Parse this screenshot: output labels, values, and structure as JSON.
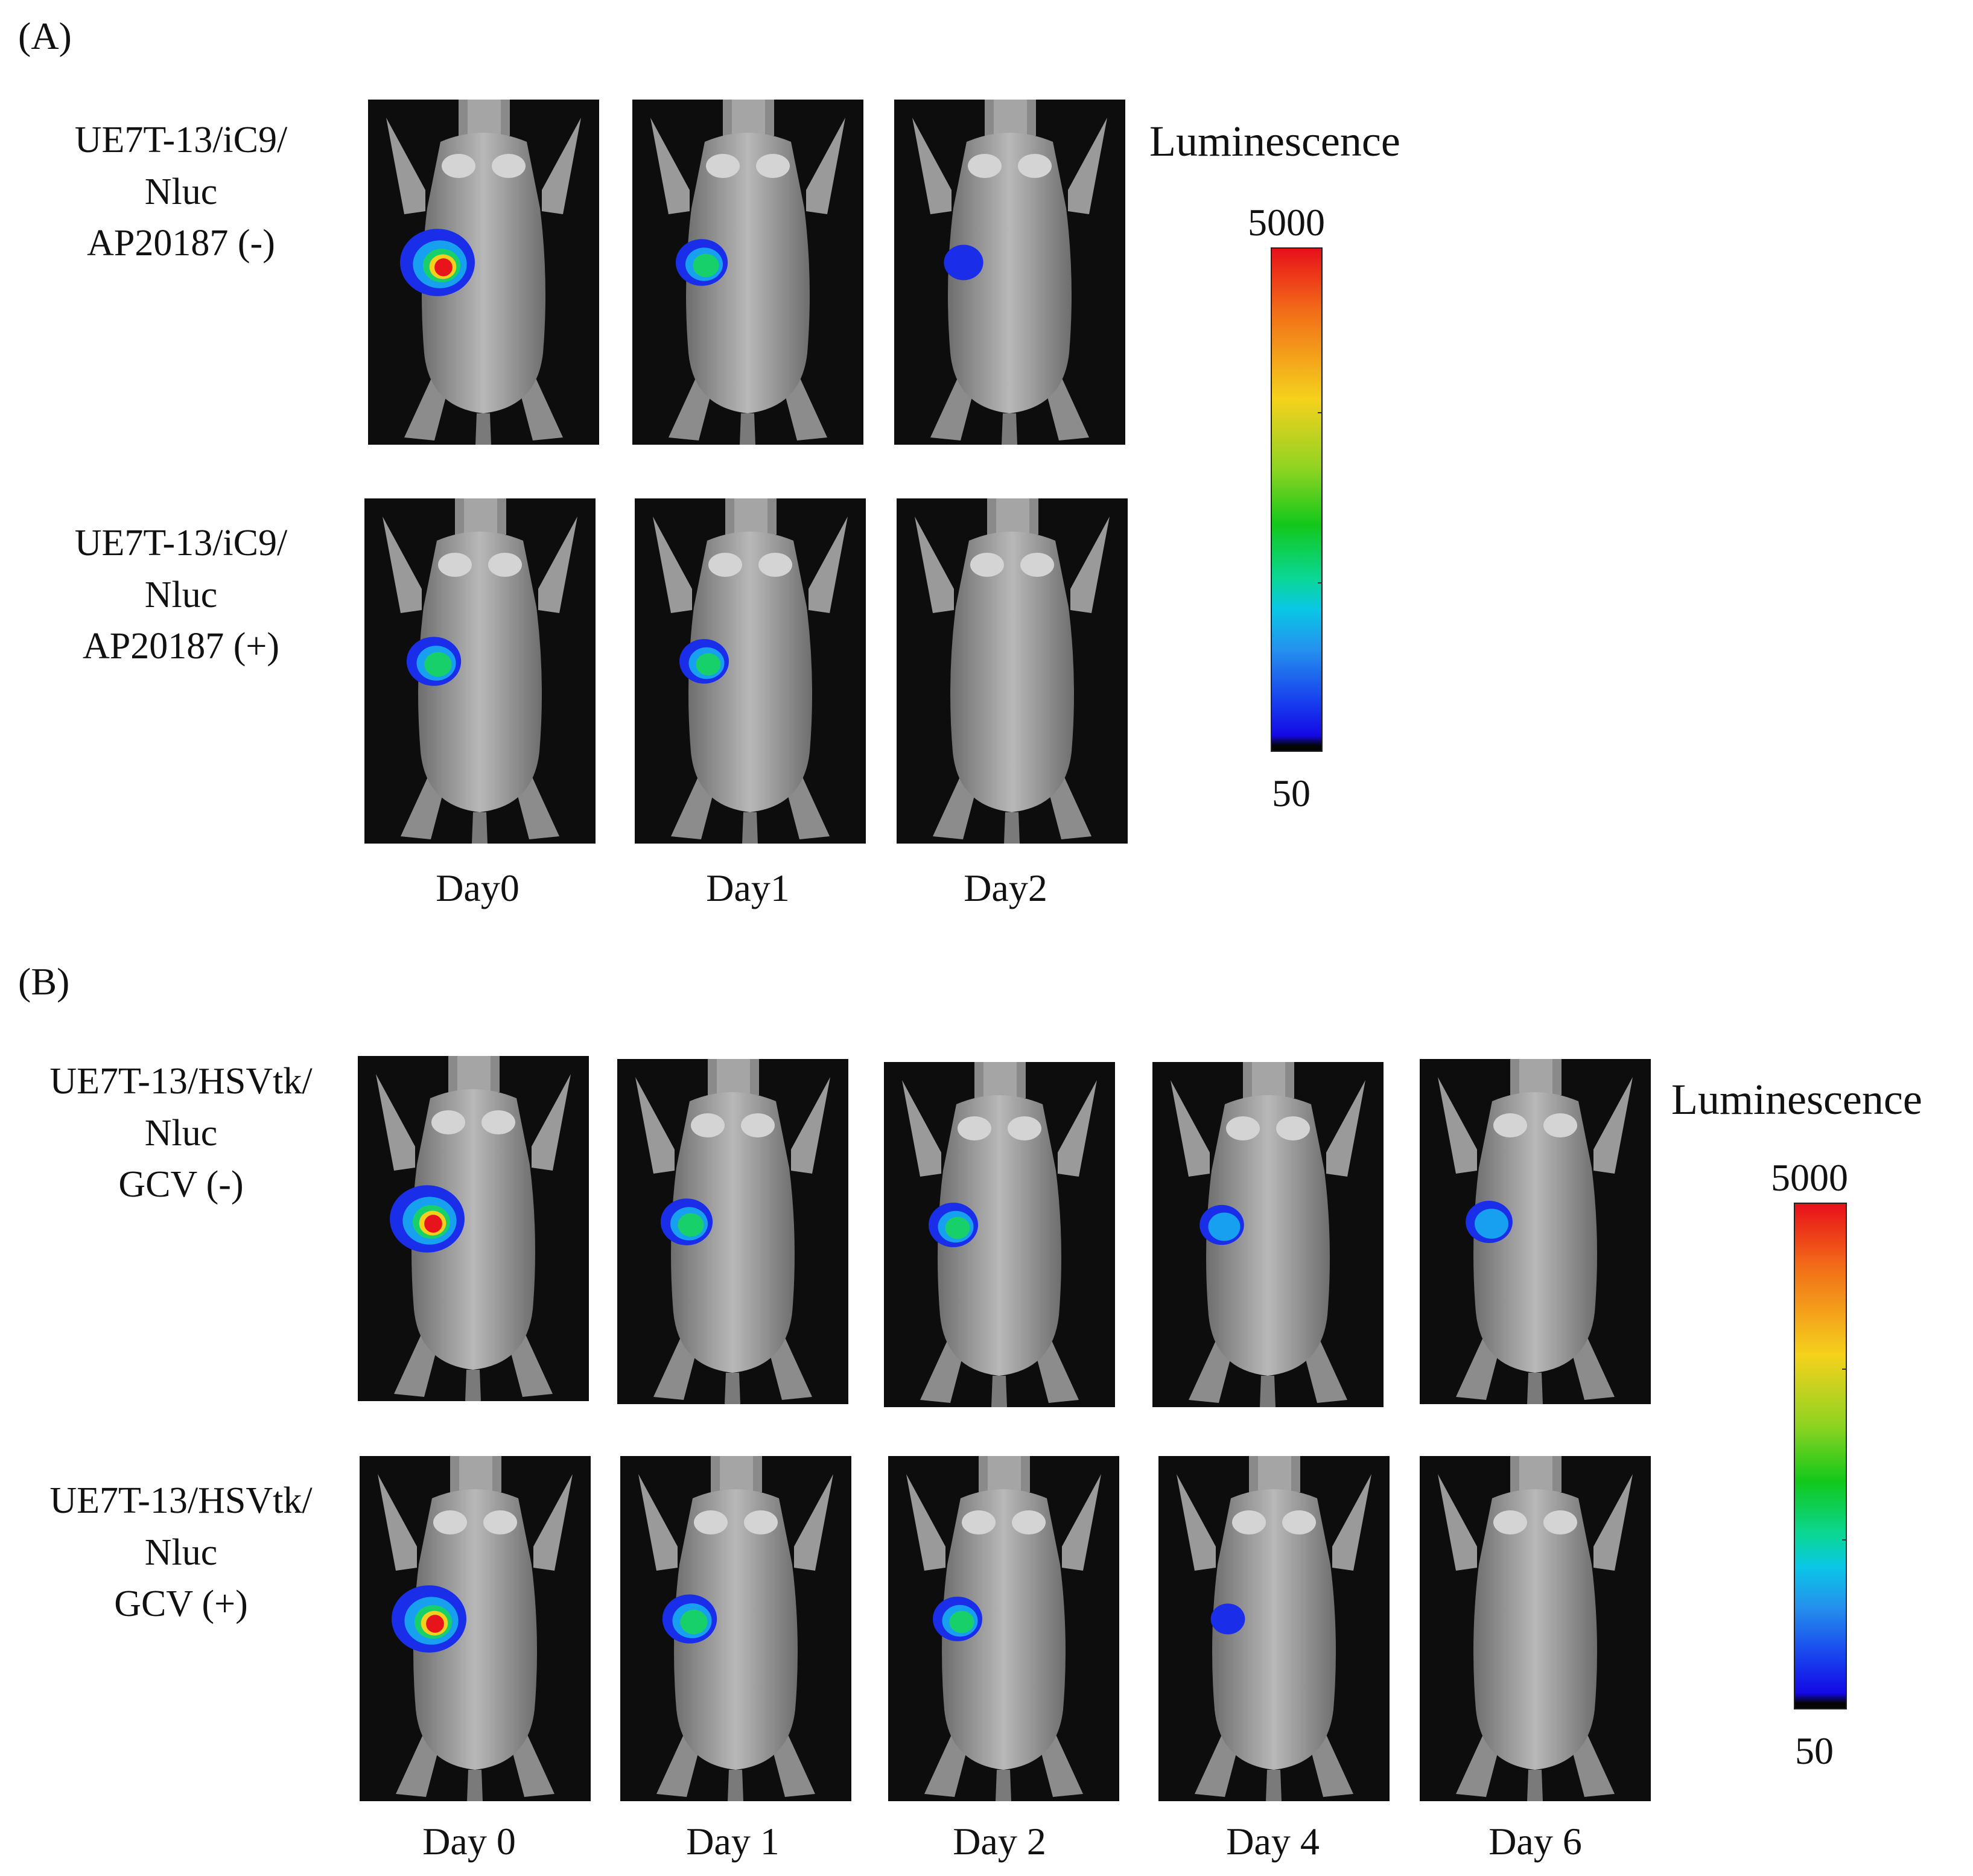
{
  "panel_a": {
    "label": "(A)",
    "rows": [
      {
        "line1": "UE7T-13/iC9/",
        "line2": "Nluc",
        "line3": "AP20187 (-)",
        "signals": [
          1.0,
          0.55,
          0.3
        ]
      },
      {
        "line1": "UE7T-13/iC9/",
        "line2": "Nluc",
        "line3": "AP20187 (+)",
        "signals": [
          0.6,
          0.5,
          0
        ]
      }
    ],
    "days": [
      "Day0",
      "Day1",
      "Day2"
    ],
    "scale": {
      "title": "Luminescence",
      "max": "5000",
      "min": "50"
    }
  },
  "panel_b": {
    "label": "(B)",
    "rows": [
      {
        "line1": "UE7T-13/HSVtk/",
        "line2": "Nluc",
        "line3": "GCV (-)",
        "signals": [
          1.0,
          0.55,
          0.5,
          0.4,
          0.45
        ]
      },
      {
        "line1": "UE7T-13/HSVtk/",
        "line2": "Nluc",
        "line3": "GCV (+)",
        "signals": [
          1.0,
          0.6,
          0.5,
          0.2,
          0
        ]
      }
    ],
    "days": [
      "Day 0",
      "Day 1",
      "Day 2",
      "Day 4",
      "Day 6"
    ],
    "scale": {
      "title": "Luminescence",
      "max": "5000",
      "min": "50"
    }
  }
}
